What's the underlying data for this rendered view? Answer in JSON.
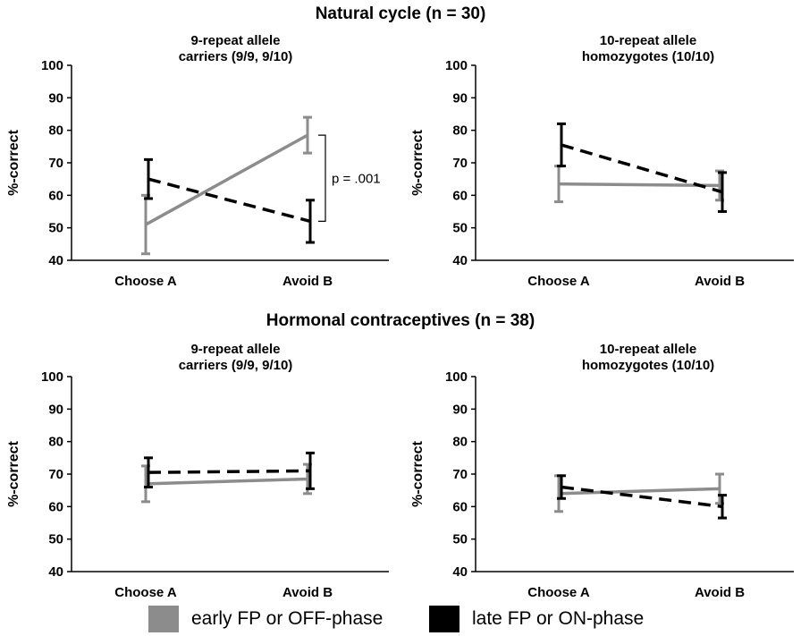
{
  "colors": {
    "early": "#8c8c8c",
    "late": "#000000",
    "axis": "#000000"
  },
  "section_titles": {
    "top": "Natural cycle (n = 30)",
    "bottom": "Hormonal contraceptives (n = 38)"
  },
  "legend": {
    "early": "early FP or OFF-phase",
    "late": "late FP or ON-phase"
  },
  "chart_data": [
    {
      "type": "line",
      "title_lines": [
        "9-repeat allele",
        "carriers (9/9, 9/10)"
      ],
      "categories": [
        "Choose A",
        "Avoid B"
      ],
      "ylabel": "%-correct",
      "ylim": [
        40,
        100
      ],
      "yticks": [
        40,
        50,
        60,
        70,
        80,
        90,
        100
      ],
      "series": [
        {
          "name": "early FP or OFF-phase",
          "style": "solid",
          "values": [
            51,
            78.5
          ],
          "err": [
            9,
            5.5
          ]
        },
        {
          "name": "late FP or ON-phase",
          "style": "dashed",
          "values": [
            65,
            52
          ],
          "err": [
            6,
            6.5
          ]
        }
      ],
      "annotation": "p = .001"
    },
    {
      "type": "line",
      "title_lines": [
        "10-repeat allele",
        "homozygotes (10/10)"
      ],
      "categories": [
        "Choose A",
        "Avoid B"
      ],
      "ylabel": "%-correct",
      "ylim": [
        40,
        100
      ],
      "yticks": [
        40,
        50,
        60,
        70,
        80,
        90,
        100
      ],
      "series": [
        {
          "name": "early FP or OFF-phase",
          "style": "solid",
          "values": [
            63.5,
            63
          ],
          "err": [
            5.5,
            4.5
          ]
        },
        {
          "name": "late FP or ON-phase",
          "style": "dashed",
          "values": [
            75.5,
            61
          ],
          "err": [
            6.5,
            6
          ]
        }
      ]
    },
    {
      "type": "line",
      "title_lines": [
        "9-repeat allele",
        "carriers (9/9, 9/10)"
      ],
      "categories": [
        "Choose A",
        "Avoid B"
      ],
      "ylabel": "%-correct",
      "ylim": [
        40,
        100
      ],
      "yticks": [
        40,
        50,
        60,
        70,
        80,
        90,
        100
      ],
      "series": [
        {
          "name": "early FP or OFF-phase",
          "style": "solid",
          "values": [
            67,
            68.5
          ],
          "err": [
            5.5,
            4.5
          ]
        },
        {
          "name": "late FP or ON-phase",
          "style": "dashed",
          "values": [
            70.5,
            71
          ],
          "err": [
            4.5,
            5.5
          ]
        }
      ]
    },
    {
      "type": "line",
      "title_lines": [
        "10-repeat allele",
        "homozygotes (10/10)"
      ],
      "categories": [
        "Choose A",
        "Avoid B"
      ],
      "ylabel": "%-correct",
      "ylim": [
        40,
        100
      ],
      "yticks": [
        40,
        50,
        60,
        70,
        80,
        90,
        100
      ],
      "series": [
        {
          "name": "early FP or OFF-phase",
          "style": "solid",
          "values": [
            64,
            65.5
          ],
          "err": [
            5.5,
            4.5
          ]
        },
        {
          "name": "late FP or ON-phase",
          "style": "dashed",
          "values": [
            66,
            60
          ],
          "err": [
            3.5,
            3.5
          ]
        }
      ]
    }
  ]
}
